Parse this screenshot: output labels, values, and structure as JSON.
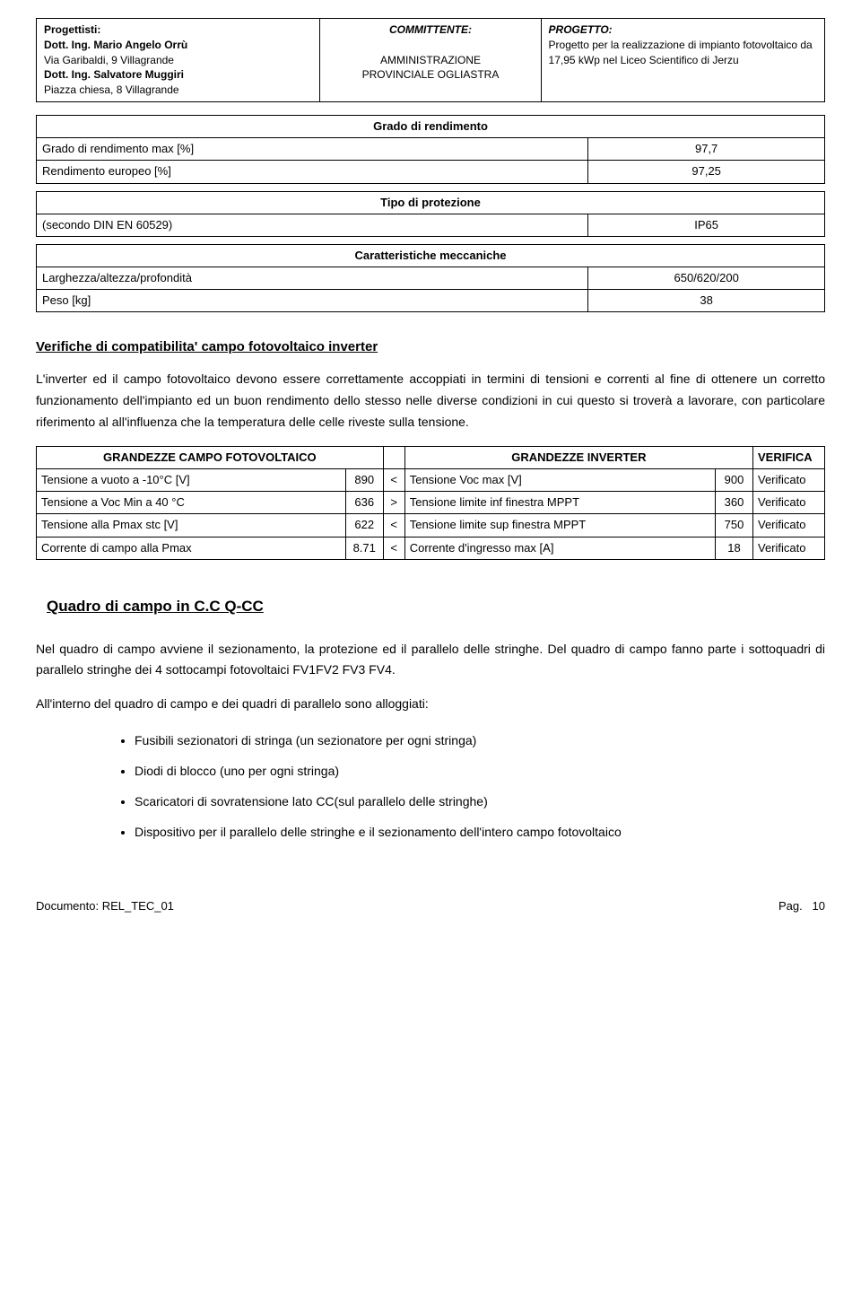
{
  "header": {
    "col1_title": "Progettisti:",
    "col1_l1": "Dott. Ing. Mario Angelo Orrù",
    "col1_l2": "Via Garibaldi, 9 Villagrande",
    "col1_l3": "Dott. Ing. Salvatore Muggiri",
    "col1_l4": "Piazza chiesa, 8 Villagrande",
    "col2_title": "COMMITTENTE:",
    "col2_l1": "AMMINISTRAZIONE",
    "col2_l2": "PROVINCIALE OGLIASTRA",
    "col3_title": "PROGETTO:",
    "col3_l1": "Progetto per la realizzazione di impianto fotovoltaico da 17,95 kWp nel Liceo Scientifico di Jerzu"
  },
  "grado": {
    "title": "Grado di rendimento",
    "r1_label": "Grado di rendimento max [%]",
    "r1_val": "97,7",
    "r2_label": "Rendimento europeo  [%]",
    "r2_val": "97,25"
  },
  "tipo": {
    "title": "Tipo di protezione",
    "r1_label": "(secondo DIN EN 60529)",
    "r1_val": "IP65"
  },
  "mecc": {
    "title": "Caratteristiche meccaniche",
    "r1_label": "Larghezza/altezza/profondità",
    "r1_val": "650/620/200",
    "r2_label": "Peso [kg]",
    "r2_val": "38"
  },
  "verif_heading": "Verifiche di compatibilita' campo fotovoltaico inverter",
  "verif_para": "L'inverter ed il campo fotovoltaico devono essere correttamente accoppiati in termini di tensioni e correnti al fine di ottenere un  corretto funzionamento dell'impianto ed un buon rendimento dello stesso nelle diverse condizioni in cui questo si troverà a lavorare, con particolare riferimento al all'influenza che la temperatura delle celle riveste sulla tensione.",
  "vt": {
    "h_left": "GRANDEZZE CAMPO FOTOVOLTAICO",
    "h_right": "GRANDEZZE INVERTER",
    "h_ver": "VERIFICA",
    "rows": [
      {
        "l": "Tensione a vuoto  a -10°C [V]",
        "lv": "890",
        "op": "<",
        "r": "Tensione Voc max [V]",
        "rv": "900",
        "ver": "Verificato"
      },
      {
        "l": "Tensione a Voc Min a 40 °C",
        "lv": "636",
        "op": ">",
        "r": "Tensione limite inf finestra MPPT",
        "rv": "360",
        "ver": "Verificato"
      },
      {
        "l": "Tensione alla Pmax stc [V]",
        "lv": "622",
        "op": "<",
        "r": "Tensione limite sup finestra MPPT",
        "rv": "750",
        "ver": "Verificato"
      },
      {
        "l": "Corrente di campo alla Pmax",
        "lv": "8.71",
        "op": "<",
        "r": "Corrente d'ingresso max [A]",
        "rv": "18",
        "ver": "Verificato"
      }
    ]
  },
  "quadro_title": "Quadro di campo in C.C Q-CC",
  "quadro_p1": "Nel quadro di campo avviene il sezionamento, la protezione ed il parallelo delle stringhe. Del quadro di campo fanno parte i sottoquadri di parallelo stringhe dei 4 sottocampi fotovoltaici FV1FV2 FV3 FV4.",
  "quadro_p2": "All'interno del quadro di campo e dei quadri di parallelo sono alloggiati:",
  "bullets": [
    "Fusibili sezionatori di stringa (un sezionatore per ogni stringa)",
    "Diodi di blocco (uno per ogni stringa)",
    "Scaricatori di sovratensione lato CC(sul parallelo delle stringhe)",
    "Dispositivo per il parallelo delle stringhe e il sezionamento dell'intero campo fotovoltaico"
  ],
  "footer_left": "Documento: REL_TEC_01",
  "footer_right_label": "Pag.",
  "footer_right_num": "10"
}
